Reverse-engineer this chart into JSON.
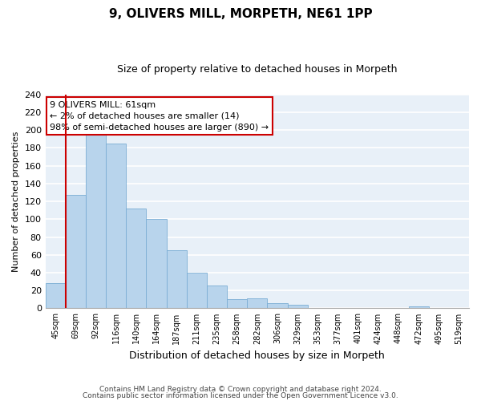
{
  "title": "9, OLIVERS MILL, MORPETH, NE61 1PP",
  "subtitle": "Size of property relative to detached houses in Morpeth",
  "xlabel": "Distribution of detached houses by size in Morpeth",
  "ylabel": "Number of detached properties",
  "bar_color": "#b8d4ec",
  "bar_edge_color": "#7aadd4",
  "highlight_line_color": "#cc0000",
  "categories": [
    "45sqm",
    "69sqm",
    "92sqm",
    "116sqm",
    "140sqm",
    "164sqm",
    "187sqm",
    "211sqm",
    "235sqm",
    "258sqm",
    "282sqm",
    "306sqm",
    "329sqm",
    "353sqm",
    "377sqm",
    "401sqm",
    "424sqm",
    "448sqm",
    "472sqm",
    "495sqm",
    "519sqm"
  ],
  "values": [
    28,
    127,
    195,
    185,
    112,
    100,
    65,
    40,
    26,
    10,
    11,
    6,
    4,
    0,
    0,
    0,
    0,
    0,
    2,
    0,
    0
  ],
  "highlight_bar_index": 0,
  "ylim": [
    0,
    240
  ],
  "yticks": [
    0,
    20,
    40,
    60,
    80,
    100,
    120,
    140,
    160,
    180,
    200,
    220,
    240
  ],
  "annotation_line1": "9 OLIVERS MILL: 61sqm",
  "annotation_line2": "← 2% of detached houses are smaller (14)",
  "annotation_line3": "98% of semi-detached houses are larger (890) →",
  "annotation_box_color": "#ffffff",
  "annotation_box_edge": "#cc0000",
  "footer_line1": "Contains HM Land Registry data © Crown copyright and database right 2024.",
  "footer_line2": "Contains public sector information licensed under the Open Government Licence v3.0.",
  "background_color": "#e8f0f8",
  "grid_color": "#ffffff"
}
